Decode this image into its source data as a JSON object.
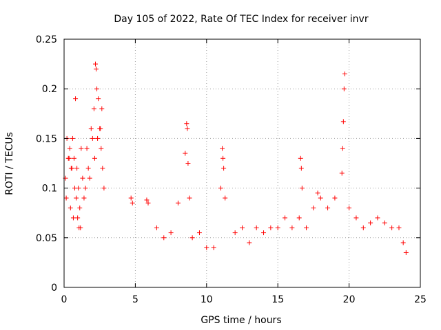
{
  "chart_data": {
    "type": "scatter",
    "title": "Day 105 of 2022, Rate Of TEC Index for receiver invr",
    "xlabel": "GPS time / hours",
    "ylabel": "ROTI / TECUs",
    "xlim": [
      0,
      25
    ],
    "ylim": [
      0,
      0.25
    ],
    "xticks": [
      0,
      5,
      10,
      15,
      20,
      25
    ],
    "xtick_labels": [
      "0",
      "5",
      "10",
      "15",
      "20",
      "25"
    ],
    "yticks": [
      0,
      0.05,
      0.1,
      0.15,
      0.2,
      0.25
    ],
    "ytick_labels": [
      "0",
      "0.05",
      "0.1",
      "0.15",
      "0.2",
      "0.25"
    ],
    "grid": true,
    "marker": "+",
    "color": "#ff0000",
    "series": [
      {
        "name": "ROTI",
        "x": [
          0.1,
          0.2,
          0.3,
          0.4,
          0.5,
          0.6,
          0.7,
          0.8,
          0.9,
          1.0,
          1.1,
          1.2,
          1.3,
          1.4,
          1.5,
          1.6,
          1.7,
          1.8,
          1.9,
          2.0,
          2.1,
          2.2,
          2.25,
          2.3,
          2.4,
          2.5,
          2.6,
          2.7,
          2.8,
          0.15,
          0.35,
          0.55,
          0.75,
          0.95,
          1.15,
          2.15,
          2.35,
          2.55,
          2.65,
          0.45,
          0.65,
          0.85,
          1.05,
          4.7,
          4.8,
          5.8,
          5.9,
          6.5,
          7.0,
          7.5,
          8.0,
          8.5,
          8.6,
          8.65,
          8.7,
          8.8,
          9.0,
          9.5,
          10.0,
          10.5,
          11.0,
          11.1,
          11.15,
          11.2,
          11.3,
          12.0,
          12.5,
          13.0,
          13.5,
          14.0,
          14.5,
          15.0,
          15.5,
          16.0,
          16.5,
          16.6,
          16.65,
          16.7,
          17.0,
          17.5,
          17.8,
          18.0,
          18.5,
          19.0,
          19.5,
          19.55,
          19.6,
          19.65,
          19.7,
          20.0,
          20.5,
          21.0,
          21.5,
          22.0,
          22.5,
          23.0,
          23.5,
          23.8,
          24.0
        ],
        "y": [
          0.11,
          0.15,
          0.13,
          0.14,
          0.12,
          0.15,
          0.13,
          0.19,
          0.12,
          0.1,
          0.08,
          0.14,
          0.11,
          0.09,
          0.1,
          0.14,
          0.12,
          0.11,
          0.16,
          0.15,
          0.18,
          0.225,
          0.22,
          0.2,
          0.19,
          0.16,
          0.14,
          0.12,
          0.1,
          0.09,
          0.13,
          0.12,
          0.1,
          0.07,
          0.06,
          0.13,
          0.15,
          0.16,
          0.18,
          0.08,
          0.07,
          0.09,
          0.06,
          0.09,
          0.085,
          0.088,
          0.085,
          0.06,
          0.05,
          0.055,
          0.085,
          0.135,
          0.165,
          0.16,
          0.125,
          0.09,
          0.05,
          0.055,
          0.04,
          0.04,
          0.1,
          0.14,
          0.13,
          0.12,
          0.09,
          0.055,
          0.06,
          0.045,
          0.06,
          0.055,
          0.06,
          0.06,
          0.07,
          0.06,
          0.07,
          0.13,
          0.12,
          0.1,
          0.06,
          0.08,
          0.095,
          0.09,
          0.08,
          0.09,
          0.115,
          0.14,
          0.167,
          0.2,
          0.215,
          0.08,
          0.07,
          0.06,
          0.065,
          0.07,
          0.065,
          0.06,
          0.06,
          0.045,
          0.035
        ]
      }
    ]
  }
}
